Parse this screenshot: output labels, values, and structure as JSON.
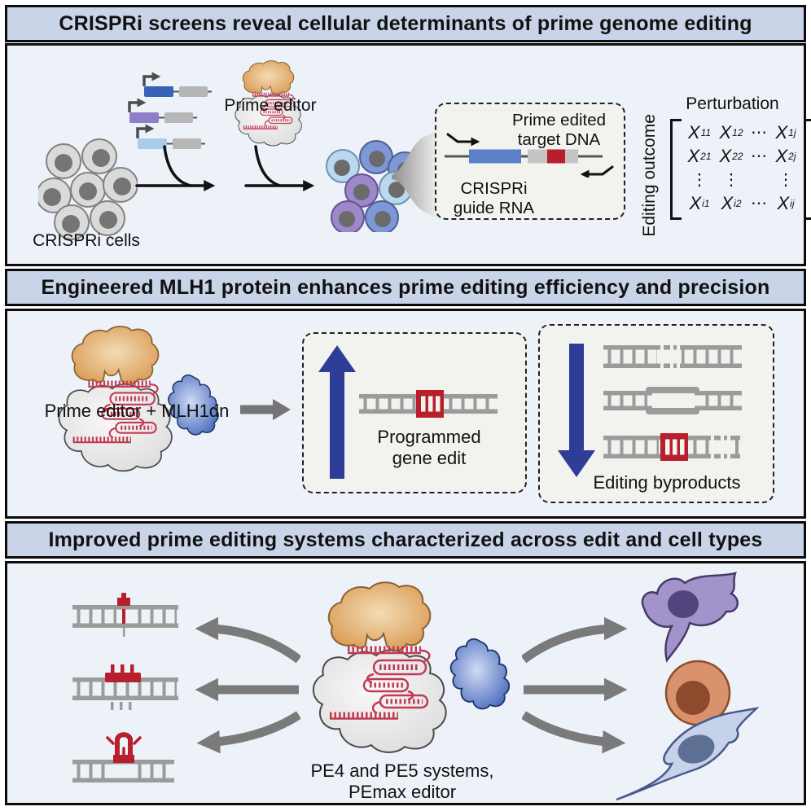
{
  "headers": {
    "section1": "CRISPRi screens reveal cellular determinants of prime genome editing",
    "section2": "Engineered MLH1 protein enhances prime editing efficiency and precision",
    "section3": "Improved prime editing systems characterized across edit and cell types"
  },
  "panel1": {
    "crispri_cells_label": "CRISPRi cells",
    "prime_editor_label": "Prime editor",
    "target_dna_label": "Prime edited\ntarget DNA",
    "guide_rna_label": "CRISPRi\nguide RNA",
    "perturbation_label": "Perturbation",
    "editing_outcome_label": "Editing outcome",
    "matrix": {
      "rows": [
        [
          "X_11",
          "X_12",
          "⋯",
          "X_1j"
        ],
        [
          "X_21",
          "X_22",
          "⋯",
          "X_2j"
        ],
        [
          "⋮",
          "⋮",
          "",
          "⋮"
        ],
        [
          "X_i1",
          "X_i2",
          "⋯",
          "X_ij"
        ]
      ]
    }
  },
  "panel2": {
    "complex_label": "Prime editor + MLH1dn",
    "programmed_label": "Programmed\ngene edit",
    "byproducts_label": "Editing byproducts"
  },
  "panel3": {
    "systems_label": "PE4 and PE5 systems,\nPEmax editor"
  },
  "colors": {
    "header_bg": "#c9d4e9",
    "panel_bg": "#edf2f9",
    "box_bg": "#f2f2ef",
    "edit_red": "#b81f2d",
    "pegrna_red": "#c23a52",
    "arrow_blue": "#2e3d96",
    "gray_arrow": "#7a7a7a",
    "plasmid_dark_blue": "#3a62b4",
    "plasmid_purple": "#8f7fc7",
    "plasmid_light_blue": "#a8cdec",
    "construct_blue": "#5b7fc8",
    "cas_orange": "#d9974f",
    "mlh_blue": "#4a69bd",
    "cell_gray": "#d9d9d9",
    "cell_blue": "#7e97d6",
    "cell_light_blue": "#bad9ee",
    "cell_purple": "#9d88c9",
    "fibroblast_purple": "#a294cb",
    "round_cell_orange": "#d9926c",
    "spindle_cell_blue": "#c5d2e9"
  }
}
